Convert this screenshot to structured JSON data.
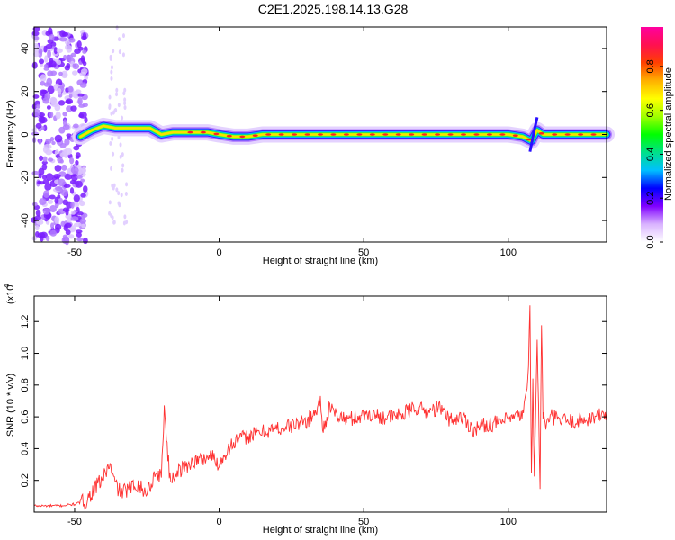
{
  "title": "C2E1.2025.198.14.13.G28",
  "chart_data": [
    {
      "type": "heatmap",
      "xlabel": "Height of straight line (km)",
      "ylabel": "Frequency (Hz)",
      "xlim": [
        -64,
        134
      ],
      "ylim": [
        -50,
        50
      ],
      "xticks": [
        -50,
        0,
        50,
        100
      ],
      "yticks": [
        -40,
        -20,
        0,
        20,
        40
      ],
      "colorbar": {
        "label": "Normalized spectral amplitude",
        "range": [
          0,
          0.98
        ],
        "ticks": [
          0.0,
          0.2,
          0.4,
          0.6,
          0.8
        ],
        "colormap": [
          "#ffffff",
          "#d9b3ff",
          "#8000ff",
          "#0000ff",
          "#00c0ff",
          "#00e08a",
          "#00ff00",
          "#a0ff00",
          "#ffff00",
          "#ffb000",
          "#ff4000",
          "#ff1050",
          "#ff00a0"
        ]
      },
      "ridge": {
        "description_points_x": [
          -48,
          -44,
          -40,
          -36,
          -30,
          -24,
          -20,
          -16,
          -10,
          -4,
          0,
          5,
          10,
          15,
          20,
          30,
          40,
          50,
          60,
          70,
          80,
          90,
          100,
          105,
          108,
          110,
          112,
          120,
          134
        ],
        "frequency_hz": [
          -1,
          2,
          4,
          3,
          3,
          3,
          0,
          1,
          1,
          1,
          0,
          -1,
          -1,
          0,
          0,
          0,
          0,
          0,
          0,
          0,
          0,
          0,
          0,
          -1,
          -3,
          2,
          0,
          0,
          0
        ]
      }
    },
    {
      "type": "line",
      "xlabel": "Height of straight line (km)",
      "ylabel": "SNR (10 * v/v)",
      "ymultiplier": "(x10",
      "ymultiplier_exp": "4",
      "xlim": [
        -64,
        134
      ],
      "ylim": [
        0,
        1.36
      ],
      "xticks": [
        -50,
        0,
        50,
        100
      ],
      "yticks": [
        0.2,
        0.4,
        0.6,
        0.8,
        1.0,
        1.2
      ],
      "series": [
        {
          "color": "#ff3030",
          "x": [
            -64,
            -55,
            -50,
            -46,
            -43,
            -40,
            -38,
            -36,
            -34,
            -32,
            -30,
            -28,
            -26,
            -24,
            -22,
            -20,
            -19,
            -18,
            -17,
            -15,
            -12,
            -9,
            -6,
            -3,
            0,
            3,
            6,
            10,
            14,
            18,
            22,
            26,
            30,
            33,
            35,
            36,
            38,
            40,
            44,
            48,
            52,
            56,
            60,
            64,
            68,
            72,
            76,
            80,
            84,
            88,
            92,
            96,
            100,
            103,
            105,
            106,
            107,
            107.5,
            108,
            108.5,
            109,
            110,
            111,
            111.5,
            112,
            113,
            115,
            118,
            122,
            126,
            130,
            134
          ],
          "y": [
            0.04,
            0.04,
            0.05,
            0.07,
            0.15,
            0.22,
            0.3,
            0.18,
            0.12,
            0.14,
            0.16,
            0.18,
            0.12,
            0.16,
            0.25,
            0.22,
            0.66,
            0.42,
            0.2,
            0.25,
            0.28,
            0.32,
            0.33,
            0.36,
            0.3,
            0.4,
            0.45,
            0.48,
            0.5,
            0.52,
            0.53,
            0.55,
            0.57,
            0.62,
            0.7,
            0.52,
            0.65,
            0.62,
            0.58,
            0.6,
            0.62,
            0.6,
            0.6,
            0.62,
            0.66,
            0.63,
            0.66,
            0.58,
            0.6,
            0.52,
            0.55,
            0.56,
            0.58,
            0.6,
            0.62,
            0.7,
            0.9,
            1.35,
            0.25,
            0.8,
            0.2,
            1.1,
            0.15,
            1.22,
            0.6,
            0.55,
            0.6,
            0.58,
            0.57,
            0.58,
            0.6,
            0.62
          ]
        }
      ]
    }
  ]
}
